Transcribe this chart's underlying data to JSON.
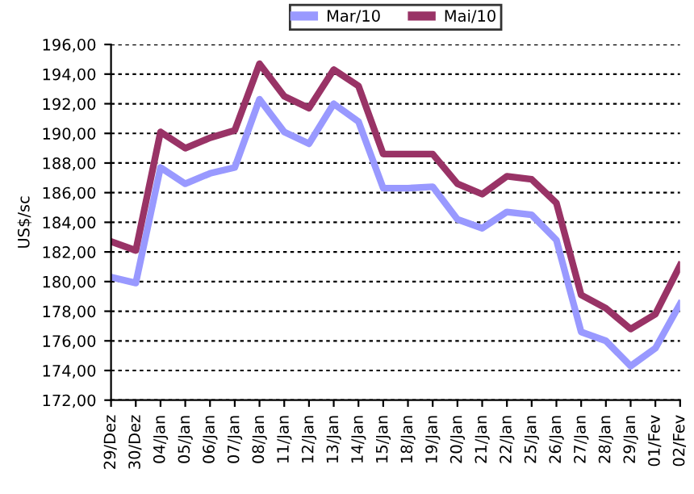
{
  "chart_data": {
    "type": "line",
    "ylabel": "US$/sc",
    "categories": [
      "29/Dez",
      "30/Dez",
      "04/Jan",
      "05/Jan",
      "06/Jan",
      "07/Jan",
      "08/Jan",
      "11/Jan",
      "12/Jan",
      "13/Jan",
      "14/Jan",
      "15/Jan",
      "18/Jan",
      "19/Jan",
      "20/Jan",
      "21/Jan",
      "22/Jan",
      "25/Jan",
      "26/Jan",
      "27/Jan",
      "28/Jan",
      "29/Jan",
      "01/Fev",
      "02/Fev"
    ],
    "series": [
      {
        "name": "Mar/10",
        "color": "#9999ff",
        "values": [
          180.3,
          179.9,
          187.7,
          186.6,
          187.3,
          187.7,
          192.3,
          190.1,
          189.3,
          192.0,
          190.8,
          186.3,
          186.3,
          186.4,
          184.2,
          183.6,
          184.7,
          184.5,
          182.8,
          176.6,
          176.0,
          174.3,
          175.5,
          178.5
        ]
      },
      {
        "name": "Mai/10",
        "color": "#993366",
        "values": [
          182.7,
          182.1,
          190.1,
          189.0,
          189.7,
          190.2,
          194.7,
          192.5,
          191.7,
          194.3,
          193.2,
          188.6,
          188.6,
          188.6,
          186.6,
          185.9,
          187.1,
          186.9,
          185.3,
          179.1,
          178.2,
          176.8,
          177.8,
          181.1
        ]
      }
    ],
    "ylim": [
      172,
      196
    ],
    "yticks": [
      {
        "value": 172,
        "label": "172,00"
      },
      {
        "value": 174,
        "label": "174,00"
      },
      {
        "value": 176,
        "label": "176,00"
      },
      {
        "value": 178,
        "label": "178,00"
      },
      {
        "value": 180,
        "label": "180,00"
      },
      {
        "value": 182,
        "label": "182,00"
      },
      {
        "value": 184,
        "label": "184,00"
      },
      {
        "value": 186,
        "label": "186,00"
      },
      {
        "value": 188,
        "label": "188,00"
      },
      {
        "value": 190,
        "label": "190,00"
      },
      {
        "value": 192,
        "label": "192,00"
      },
      {
        "value": 194,
        "label": "194,00"
      },
      {
        "value": 196,
        "label": "196,00"
      }
    ],
    "grid": "y",
    "legend": "top",
    "marker": "none",
    "line_style": "solid"
  }
}
